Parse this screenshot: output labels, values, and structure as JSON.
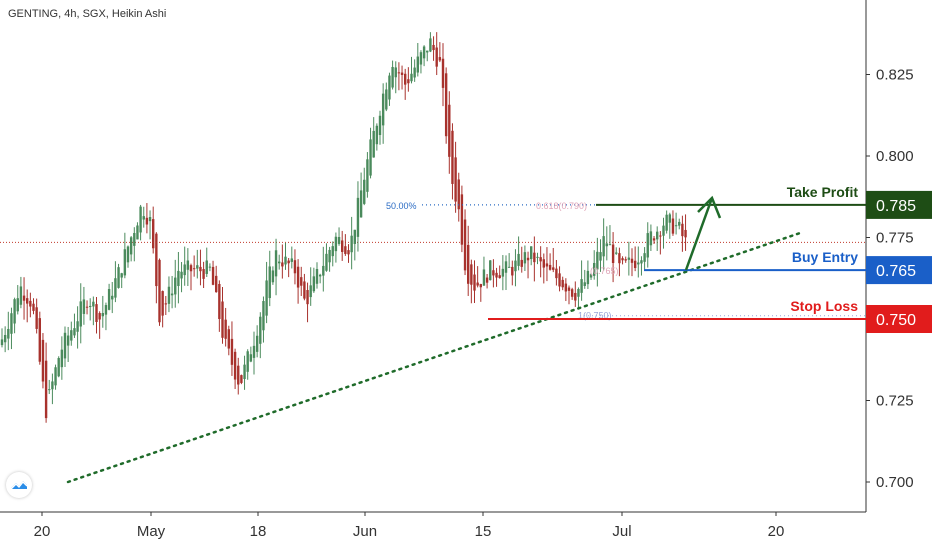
{
  "title": "GENTING, 4h, SGX, Heikin Ashi",
  "colors": {
    "up": "#4a8a5c",
    "down": "#a8322d",
    "trend": "#1f6b2a",
    "take_profit": "#1e4d15",
    "buy_entry": "#1a5fc8",
    "stop_loss": "#e11c1c",
    "fib": "#2b6cc4",
    "fib_pink": "#e0a5b8"
  },
  "chart_data": {
    "type": "candlestick",
    "ylim": [
      0.69,
      0.845
    ],
    "y_ticks": [
      "0.700",
      "0.725",
      "0.750",
      "0.775",
      "0.800",
      "0.825"
    ],
    "x_ticks": [
      "20",
      "May",
      "18",
      "Jun",
      "15",
      "Jul",
      "20"
    ],
    "levels": [
      {
        "label": "Take Profit",
        "value": 0.785,
        "price_label": "0.785",
        "color": "#1e4d15"
      },
      {
        "label": "Buy Entry",
        "value": 0.765,
        "price_label": "0.765",
        "color": "#1a5fc8"
      },
      {
        "label": "Stop Loss",
        "value": 0.75,
        "price_label": "0.750",
        "color": "#e11c1c"
      }
    ],
    "fib_annotations": [
      {
        "label": "50.00%",
        "value": 0.785
      },
      {
        "label": "0.618(0.790)",
        "value": 0.785
      },
      {
        "label": "(0.765)",
        "value": 0.765
      },
      {
        "label": "1(0.750)",
        "value": 0.751
      }
    ],
    "waypoints": [
      [
        0,
        0.742
      ],
      [
        20,
        0.76
      ],
      [
        32,
        0.755
      ],
      [
        46,
        0.722
      ],
      [
        60,
        0.74
      ],
      [
        88,
        0.757
      ],
      [
        100,
        0.75
      ],
      [
        120,
        0.765
      ],
      [
        142,
        0.785
      ],
      [
        150,
        0.78
      ],
      [
        160,
        0.75
      ],
      [
        178,
        0.765
      ],
      [
        195,
        0.765
      ],
      [
        210,
        0.765
      ],
      [
        225,
        0.742
      ],
      [
        240,
        0.73
      ],
      [
        255,
        0.745
      ],
      [
        275,
        0.77
      ],
      [
        295,
        0.765
      ],
      [
        305,
        0.755
      ],
      [
        320,
        0.765
      ],
      [
        335,
        0.775
      ],
      [
        350,
        0.772
      ],
      [
        365,
        0.795
      ],
      [
        380,
        0.815
      ],
      [
        392,
        0.83
      ],
      [
        405,
        0.822
      ],
      [
        420,
        0.83
      ],
      [
        430,
        0.835
      ],
      [
        440,
        0.828
      ],
      [
        450,
        0.795
      ],
      [
        458,
        0.785
      ],
      [
        466,
        0.765
      ],
      [
        475,
        0.76
      ],
      [
        490,
        0.765
      ],
      [
        510,
        0.765
      ],
      [
        530,
        0.77
      ],
      [
        545,
        0.765
      ],
      [
        560,
        0.762
      ],
      [
        575,
        0.758
      ],
      [
        590,
        0.763
      ],
      [
        605,
        0.775
      ],
      [
        620,
        0.765
      ],
      [
        635,
        0.768
      ],
      [
        650,
        0.775
      ],
      [
        665,
        0.78
      ],
      [
        678,
        0.778
      ],
      [
        688,
        0.772
      ]
    ]
  }
}
